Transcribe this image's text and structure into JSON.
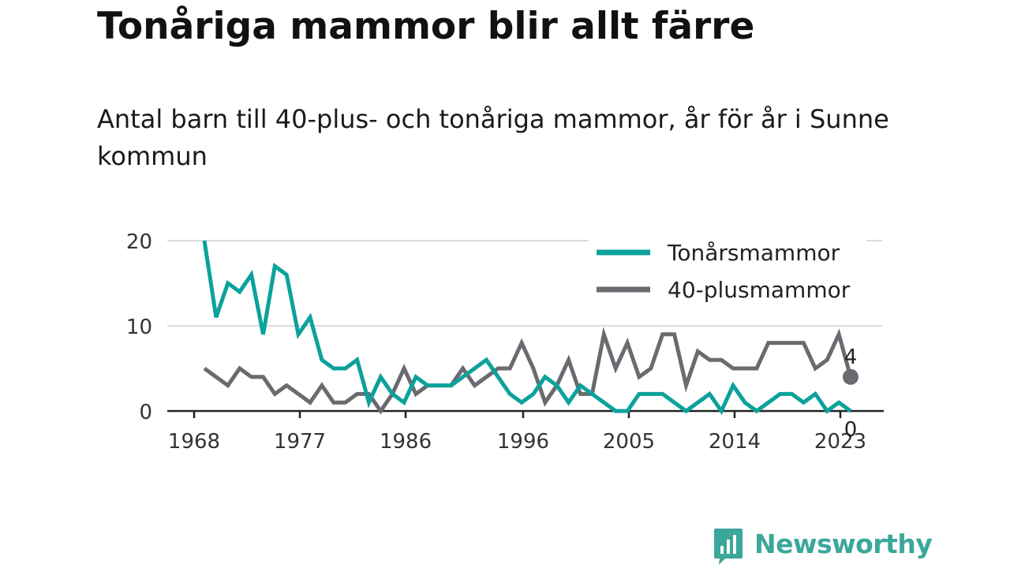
{
  "title": "Tonåriga mammor blir allt färre",
  "subtitle": "Antal barn till 40-plus- och tonåriga mammor, år för år i Sunne kommun",
  "brand": {
    "name": "Newsworthy",
    "icon": "newsworthy-logo-icon",
    "color": "#3ba79b"
  },
  "chart_data": {
    "type": "line",
    "title": "Tonåriga mammor blir allt färre",
    "subtitle": "Antal barn till 40-plus- och tonåriga mammor, år för år i Sunne kommun",
    "xlabel": "",
    "ylabel": "",
    "x": [
      1968,
      1969,
      1970,
      1971,
      1972,
      1973,
      1974,
      1975,
      1976,
      1977,
      1978,
      1979,
      1980,
      1981,
      1982,
      1983,
      1984,
      1985,
      1986,
      1987,
      1988,
      1989,
      1990,
      1991,
      1992,
      1993,
      1994,
      1995,
      1996,
      1997,
      1998,
      1999,
      2000,
      2001,
      2002,
      2003,
      2004,
      2005,
      2006,
      2007,
      2008,
      2009,
      2010,
      2011,
      2012,
      2013,
      2014,
      2015,
      2016,
      2017,
      2018,
      2019,
      2020,
      2021,
      2022,
      2023
    ],
    "x_ticks": [
      "1968",
      "1977",
      "1986",
      "1996",
      "2005",
      "2014",
      "2023"
    ],
    "y_ticks": [
      "0",
      "10",
      "20"
    ],
    "ylim": [
      0,
      20
    ],
    "grid": true,
    "legend_position": "top-right",
    "series": [
      {
        "name": "Tonårsmammor",
        "color": "#0ba29b",
        "values": [
          20,
          11,
          15,
          14,
          16,
          9,
          17,
          16,
          9,
          11,
          6,
          5,
          5,
          6,
          1,
          4,
          2,
          1,
          4,
          3,
          3,
          3,
          4,
          5,
          6,
          4,
          2,
          1,
          2,
          4,
          3,
          1,
          3,
          2,
          1,
          0,
          0,
          2,
          2,
          2,
          1,
          0,
          1,
          2,
          0,
          3,
          1,
          0,
          1,
          2,
          2,
          1,
          2,
          0,
          1,
          0
        ],
        "end_label": "0"
      },
      {
        "name": "40-plusmammor",
        "color": "#6b6a70",
        "values": [
          5,
          4,
          3,
          5,
          4,
          4,
          2,
          3,
          2,
          1,
          3,
          1,
          1,
          2,
          2,
          0,
          2,
          5,
          2,
          3,
          3,
          3,
          5,
          3,
          4,
          5,
          5,
          8,
          5,
          1,
          3,
          6,
          2,
          2,
          9,
          5,
          8,
          4,
          5,
          9,
          9,
          3,
          7,
          6,
          6,
          5,
          5,
          5,
          8,
          8,
          8,
          8,
          5,
          6,
          9,
          4
        ],
        "end_label": "4"
      }
    ]
  }
}
